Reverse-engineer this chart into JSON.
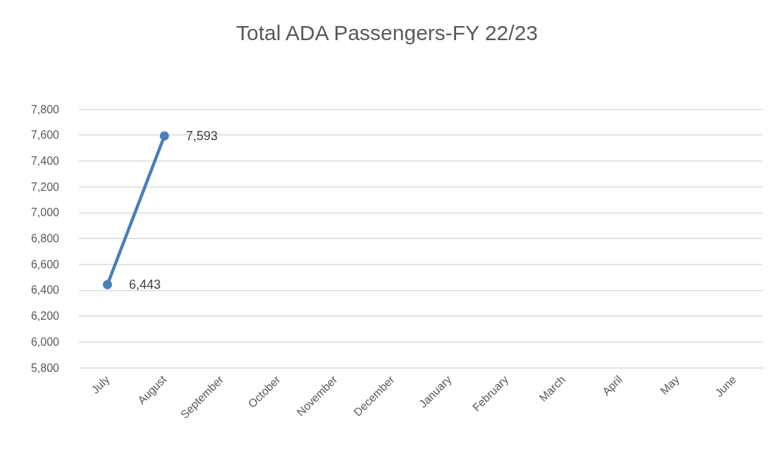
{
  "chart_data": {
    "type": "line",
    "title": "Total ADA Passengers-FY 22/23",
    "categories": [
      "July",
      "August",
      "September",
      "October",
      "November",
      "December",
      "January",
      "February",
      "March",
      "April",
      "May",
      "June"
    ],
    "series": [
      {
        "color": "#4a7ebb",
        "values": [
          6443,
          7593,
          null,
          null,
          null,
          null,
          null,
          null,
          null,
          null,
          null,
          null
        ],
        "value_labels": [
          "6,443",
          "7,593",
          null,
          null,
          null,
          null,
          null,
          null,
          null,
          null,
          null,
          null
        ]
      }
    ],
    "ylim": [
      5800,
      7800
    ],
    "yticks": [
      {
        "value": 5800,
        "label": "5,800"
      },
      {
        "value": 6000,
        "label": "6,000"
      },
      {
        "value": 6200,
        "label": "6,200"
      },
      {
        "value": 6400,
        "label": "6,400"
      },
      {
        "value": 6600,
        "label": "6,600"
      },
      {
        "value": 6800,
        "label": "6,800"
      },
      {
        "value": 7000,
        "label": "7,000"
      },
      {
        "value": 7200,
        "label": "7,200"
      },
      {
        "value": 7400,
        "label": "7,400"
      },
      {
        "value": 7600,
        "label": "7,600"
      },
      {
        "value": 7800,
        "label": "7,800"
      }
    ],
    "grid": "y",
    "marker": "circle",
    "line_style": "solid"
  }
}
